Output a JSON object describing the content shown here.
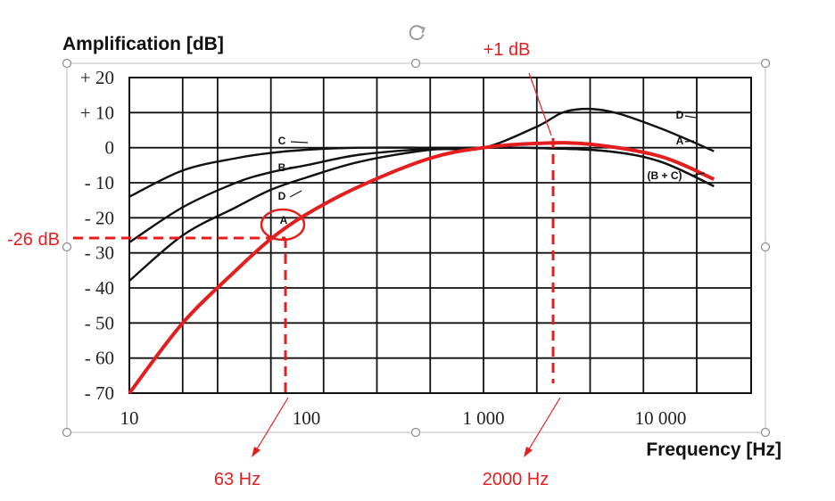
{
  "colors": {
    "curve": "#111111",
    "highlight": "#e41e1e",
    "grid": "#111111",
    "frame": "#bdbdbd"
  },
  "icons": {
    "rotate_handle": "rotate-icon"
  },
  "chart_data": {
    "type": "line",
    "title": "",
    "ylabel": "Amplification [dB]",
    "xlabel": "Frequency [Hz]",
    "x_scale": "log",
    "xlim": [
      10,
      20000
    ],
    "ylim": [
      -70,
      20
    ],
    "grid": true,
    "y_ticks": [
      "+ 20",
      "+ 10",
      "0",
      "- 10",
      "- 20",
      "- 30",
      "- 40",
      "- 50",
      "- 60",
      "- 70"
    ],
    "x_ticks": [
      "10",
      "100",
      "1 000",
      "10 000"
    ],
    "series": [
      {
        "name": "A",
        "x": [
          10,
          20,
          40,
          63,
          100,
          200,
          500,
          1000,
          2000,
          4000,
          10000,
          20000
        ],
        "y": [
          -70,
          -50,
          -35,
          -26,
          -19,
          -11,
          -3,
          0,
          1.2,
          1,
          -2.5,
          -9
        ]
      },
      {
        "name": "B",
        "x": [
          10,
          20,
          40,
          63,
          100,
          200,
          500,
          1000,
          2000,
          5000,
          10000,
          20000
        ],
        "y": [
          -27,
          -17,
          -10,
          -7,
          -5,
          -2,
          -0.3,
          0,
          -0.1,
          -1,
          -4,
          -11
        ]
      },
      {
        "name": "C",
        "x": [
          10,
          20,
          40,
          63,
          100,
          200,
          500,
          1000,
          2000,
          5000,
          10000,
          20000
        ],
        "y": [
          -14,
          -6.5,
          -3,
          -1.5,
          -0.6,
          0,
          0,
          0,
          -0.1,
          -1,
          -4,
          -11
        ]
      },
      {
        "name": "D",
        "x": [
          10,
          20,
          40,
          63,
          100,
          200,
          500,
          1000,
          2000,
          3000,
          5000,
          10000,
          20000
        ],
        "y": [
          -38,
          -25,
          -17,
          -12,
          -8.5,
          -4,
          -0.6,
          0,
          6,
          10.5,
          10.5,
          5.5,
          -1
        ]
      }
    ],
    "curve_labels": [
      "A",
      "B",
      "C",
      "D",
      "A",
      "D",
      "(B + C)"
    ],
    "annotations": [
      {
        "text": "+1 dB",
        "x": 1700,
        "y": 1
      },
      {
        "text": "-26 dB",
        "x": 63,
        "y": -26
      },
      {
        "text": "63 Hz",
        "x": 63,
        "y": -26
      },
      {
        "text": "2000 Hz",
        "x": 1700,
        "y": 1
      }
    ]
  }
}
